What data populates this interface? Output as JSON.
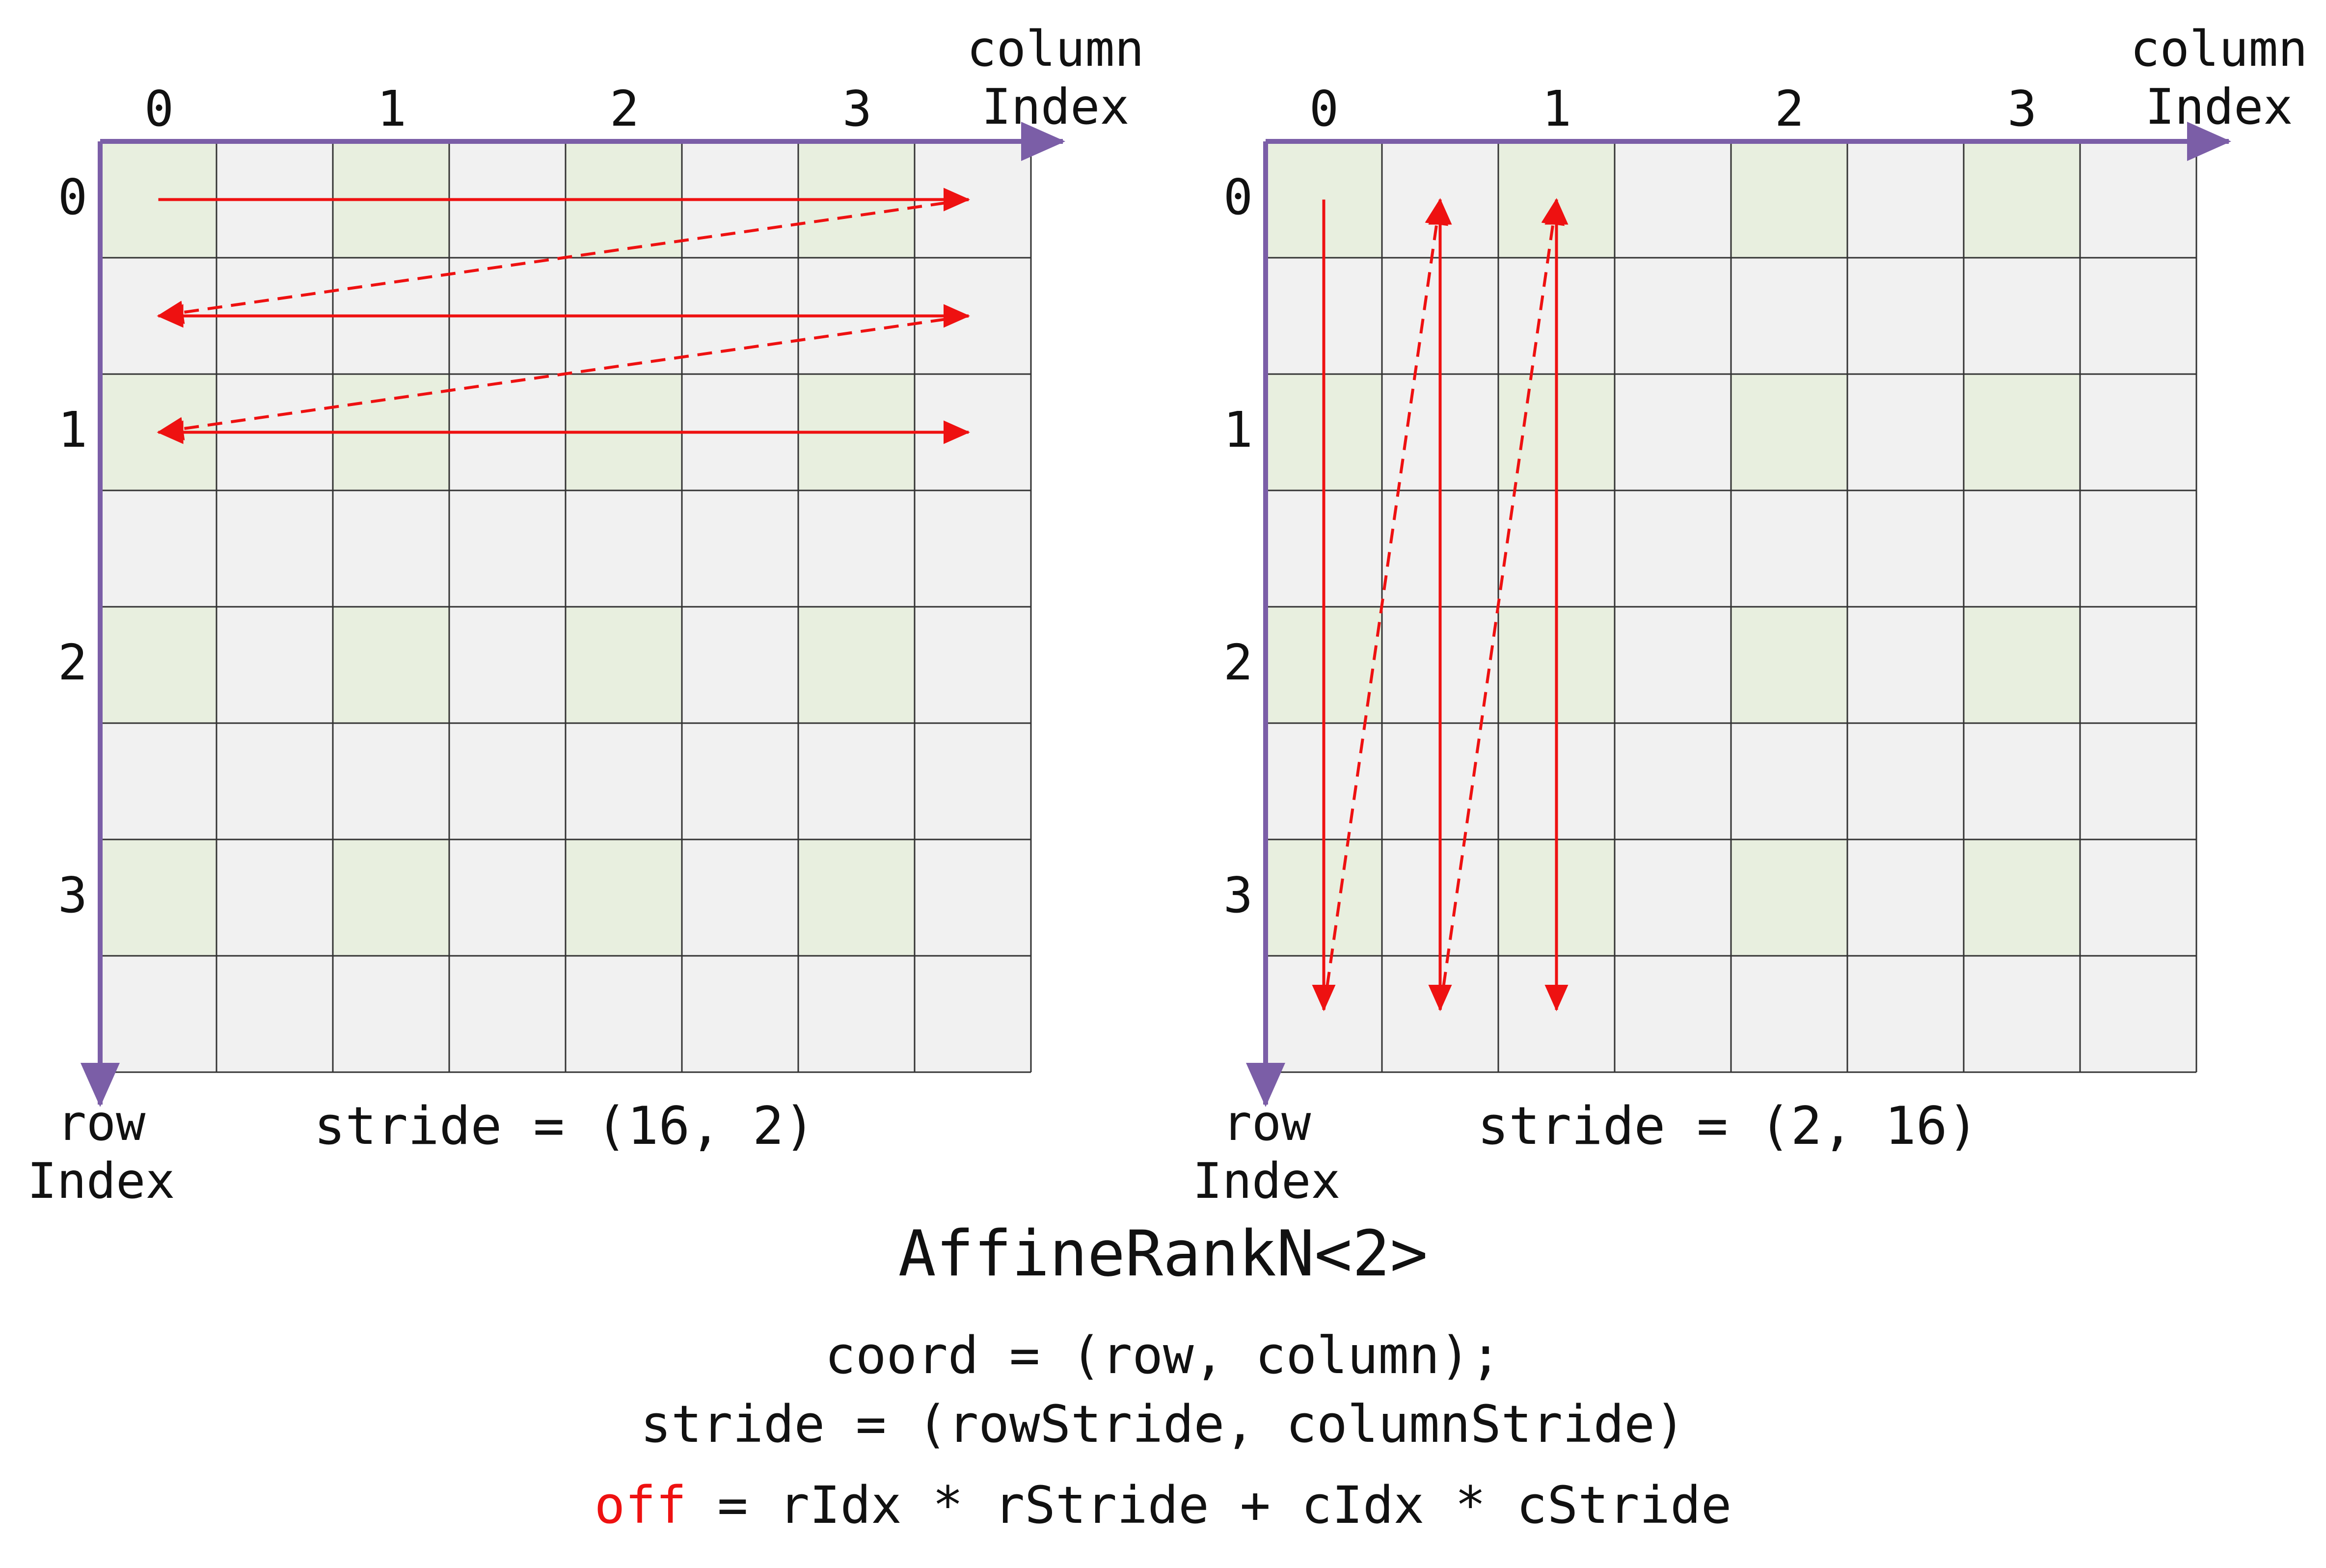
{
  "diagrams": [
    {
      "name": "row-major",
      "column_tick_labels": [
        "0",
        "1",
        "2",
        "3"
      ],
      "row_tick_labels": [
        "0",
        "1",
        "2",
        "3"
      ],
      "column_axis_label": [
        "column",
        "Index"
      ],
      "row_axis_label": [
        "row",
        "Index"
      ],
      "stride_caption": "stride = (16, 2)",
      "grid": {
        "rows": 8,
        "cols": 8
      },
      "traversal": "row-major"
    },
    {
      "name": "column-major",
      "column_tick_labels": [
        "0",
        "1",
        "2",
        "3"
      ],
      "row_tick_labels": [
        "0",
        "1",
        "2",
        "3"
      ],
      "column_axis_label": [
        "column",
        "Index"
      ],
      "row_axis_label": [
        "row",
        "Index"
      ],
      "stride_caption": "stride = (2, 16)",
      "grid": {
        "rows": 8,
        "cols": 8
      },
      "traversal": "column-major"
    }
  ],
  "title": "AffineRankN<2>",
  "formula": {
    "line1": "coord = (row, column);",
    "line2": "stride = (rowStride, columnStride)",
    "line3_highlight": "off",
    "line3_rest": " = rIdx * rStride + cIdx * cStride"
  },
  "colors": {
    "cell_highlight": "#e8efdf",
    "cell_base": "#f1f1f1",
    "grid_line": "#333333",
    "axis": "#7b5ea7",
    "arrow": "#ee1111"
  }
}
